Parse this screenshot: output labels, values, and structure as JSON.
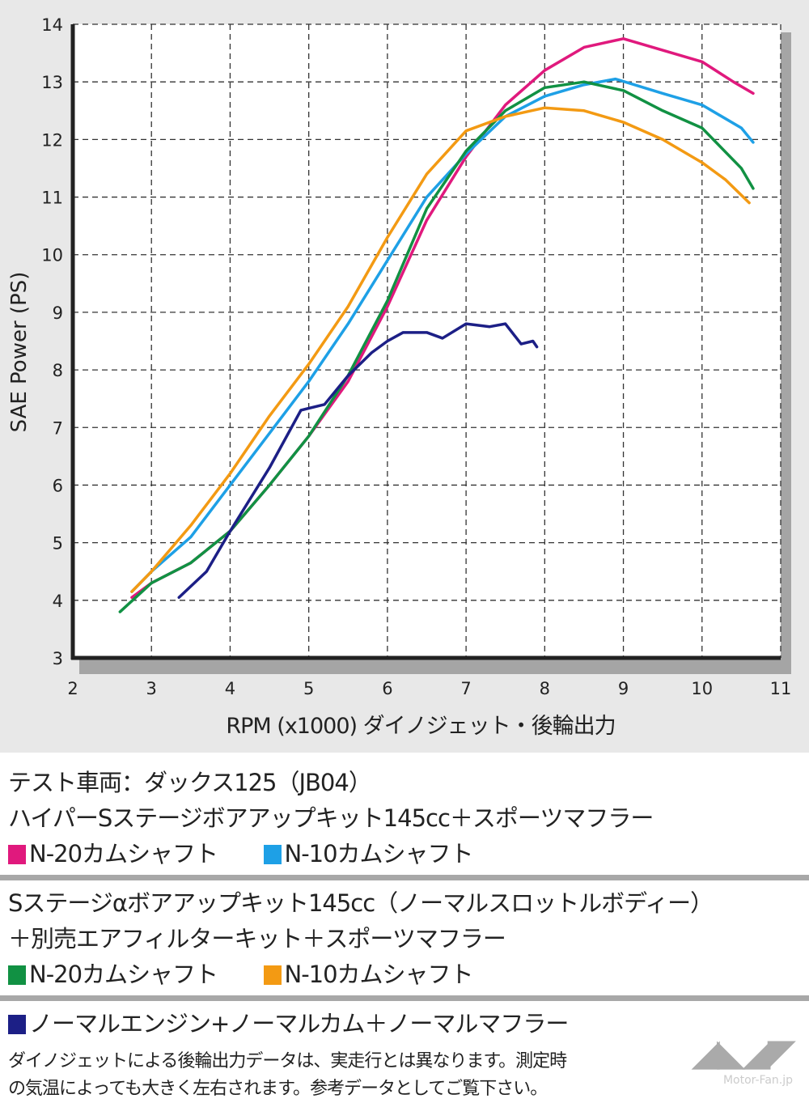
{
  "chart_data": {
    "type": "line",
    "xlabel": "RPM (x1000) ダイノジェット・後輪出力",
    "ylabel": "SAE Power (PS)",
    "xlim": [
      2,
      11
    ],
    "ylim": [
      3,
      14
    ],
    "xticks": [
      2,
      3,
      4,
      5,
      6,
      7,
      8,
      9,
      10,
      11
    ],
    "yticks": [
      3,
      4,
      5,
      6,
      7,
      8,
      9,
      10,
      11,
      12,
      13,
      14
    ],
    "grid": true,
    "series": [
      {
        "name": "N-20カムシャフト",
        "group": "ハイパーSステージボアアップキット145cc＋スポーツマフラー",
        "color": "#e0197d",
        "x": [
          2.75,
          3.0,
          3.5,
          4.0,
          4.5,
          5.0,
          5.5,
          6.0,
          6.5,
          7.0,
          7.5,
          8.0,
          8.5,
          9.0,
          9.5,
          10.0,
          10.4,
          10.65
        ],
        "y": [
          4.05,
          4.3,
          4.65,
          5.2,
          6.0,
          6.85,
          7.8,
          9.1,
          10.6,
          11.7,
          12.6,
          13.2,
          13.6,
          13.75,
          13.55,
          13.35,
          13.0,
          12.8
        ]
      },
      {
        "name": "N-10カムシャフト",
        "group": "ハイパーSステージボアアップキット145cc＋スポーツマフラー",
        "color": "#1ea0e6",
        "x": [
          2.75,
          3.0,
          3.5,
          4.0,
          4.5,
          5.0,
          5.5,
          6.0,
          6.5,
          7.0,
          7.5,
          8.0,
          8.5,
          8.9,
          9.5,
          10.0,
          10.5,
          10.65
        ],
        "y": [
          4.15,
          4.5,
          5.1,
          6.0,
          6.9,
          7.8,
          8.8,
          9.9,
          11.0,
          11.75,
          12.4,
          12.75,
          12.95,
          13.05,
          12.8,
          12.6,
          12.2,
          11.95
        ]
      },
      {
        "name": "N-20カムシャフト",
        "group": "Sステージαボアアップキット145cc（ノーマルスロットルボディー）＋別売エアフィルターキット＋スポーツマフラー",
        "color": "#119143",
        "x": [
          2.6,
          3.0,
          3.5,
          4.0,
          4.5,
          5.0,
          5.5,
          6.0,
          6.5,
          7.0,
          7.5,
          8.0,
          8.5,
          9.0,
          9.5,
          10.0,
          10.5,
          10.65
        ],
        "y": [
          3.8,
          4.3,
          4.65,
          5.2,
          6.0,
          6.85,
          7.9,
          9.2,
          10.8,
          11.8,
          12.5,
          12.9,
          13.0,
          12.85,
          12.5,
          12.2,
          11.5,
          11.15
        ]
      },
      {
        "name": "N-10カムシャフト",
        "group": "Sステージαボアアップキット145cc（ノーマルスロットルボディー）＋別売エアフィルターキット＋スポーツマフラー",
        "color": "#f39a13",
        "x": [
          2.75,
          3.0,
          3.5,
          4.0,
          4.5,
          5.0,
          5.5,
          6.0,
          6.5,
          7.0,
          7.5,
          8.0,
          8.5,
          9.0,
          9.5,
          10.0,
          10.3,
          10.6
        ],
        "y": [
          4.15,
          4.5,
          5.3,
          6.2,
          7.2,
          8.1,
          9.1,
          10.3,
          11.4,
          12.15,
          12.4,
          12.55,
          12.5,
          12.3,
          12.0,
          11.6,
          11.3,
          10.9
        ]
      },
      {
        "name": "ノーマルエンジン+ノーマルカム＋ノーマルマフラー",
        "color": "#1c1f86",
        "x": [
          3.35,
          3.7,
          4.0,
          4.5,
          4.9,
          5.2,
          5.5,
          5.8,
          6.0,
          6.2,
          6.5,
          6.7,
          7.0,
          7.3,
          7.5,
          7.7,
          7.85,
          7.9
        ],
        "y": [
          4.05,
          4.5,
          5.2,
          6.3,
          7.3,
          7.4,
          7.9,
          8.3,
          8.5,
          8.65,
          8.65,
          8.55,
          8.8,
          8.75,
          8.8,
          8.45,
          8.5,
          8.4
        ]
      }
    ]
  },
  "legend": {
    "vehicle": "テスト車両：ダックス125（JB04）",
    "group1": "ハイパーSステージボアアップキット145cc＋スポーツマフラー",
    "g1_a": "N-20カムシャフト",
    "g1_b": "N-10カムシャフト",
    "group2_l1": "Sステージαボアアップキット145cc（ノーマルスロットルボディー）",
    "group2_l2": "＋別売エアフィルターキット＋スポーツマフラー",
    "g2_a": "N-20カムシャフト",
    "g2_b": "N-10カムシャフト",
    "normal": "ノーマルエンジン+ノーマルカム＋ノーマルマフラー",
    "note1": "ダイノジェットによる後輪出力データは、実走行とは異なります。測定時",
    "note2": "の気温によっても大きく左右されます。参考データとしてご覧下さい。"
  },
  "logo": {
    "mark": "MF",
    "site": "Motor-Fan.jp"
  }
}
